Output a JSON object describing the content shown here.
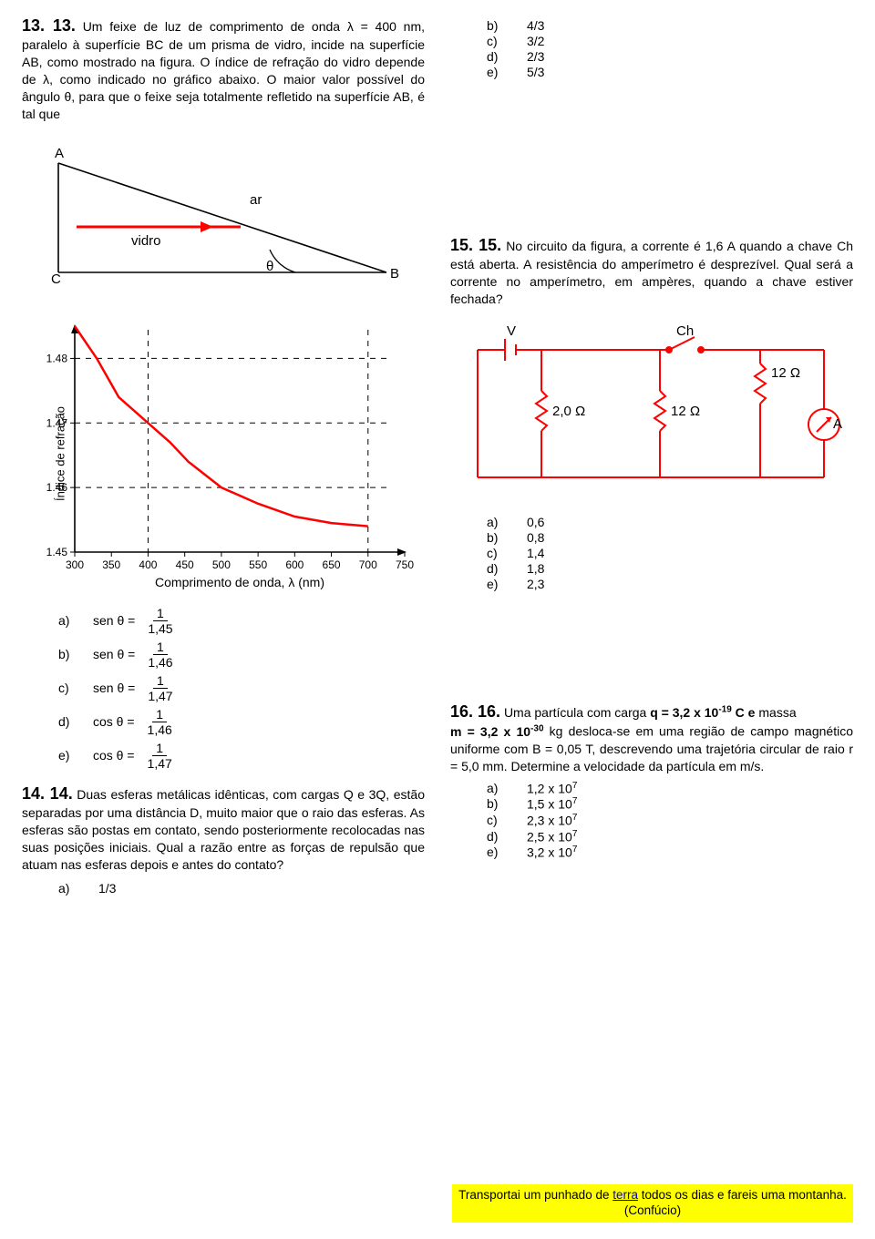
{
  "q13": {
    "number": "13. 13.",
    "body_a": "Um feixe de luz de comprimento de onda λ = 400 nm, paralelo à superfície BC de um prisma de vidro, incide na superfície AB, como mostrado na figura. O índice de refração do vidro depende de λ, como indicado no gráfico abaixo. O maior valor possível do ângulo θ, para que o feixe seja totalmente refletido na superfície AB, é tal que",
    "prism": {
      "labels": {
        "A": "A",
        "B": "B",
        "C": "C",
        "ar": "ar",
        "vidro": "vidro",
        "theta": "θ"
      },
      "colors": {
        "stroke": "#000000",
        "ray": "#ff0000"
      }
    },
    "chart": {
      "type": "line",
      "x_ticks": [
        300,
        350,
        400,
        450,
        500,
        550,
        600,
        650,
        700,
        750
      ],
      "y_ticks": [
        1.45,
        1.46,
        1.47,
        1.48
      ],
      "curve_points": [
        [
          300,
          1.485
        ],
        [
          330,
          1.48
        ],
        [
          360,
          1.474
        ],
        [
          400,
          1.47
        ],
        [
          430,
          1.467
        ],
        [
          455,
          1.464
        ],
        [
          500,
          1.46
        ],
        [
          550,
          1.4575
        ],
        [
          600,
          1.4555
        ],
        [
          650,
          1.4545
        ],
        [
          700,
          1.454
        ]
      ],
      "dash_x": [
        400,
        700
      ],
      "dash_y": [
        1.46,
        1.47,
        1.48
      ],
      "xlim": [
        300,
        750
      ],
      "ylim": [
        1.45,
        1.485
      ],
      "xlabel": "Comprimento de onda, λ (nm)",
      "ylabel": "Índice de refração",
      "colors": {
        "axis": "#000000",
        "curve": "#ff0000",
        "dash": "#000000",
        "bg": "#ffffff"
      },
      "line_width": 2.5,
      "tick_fontsize": 12,
      "label_fontsize": 14
    },
    "options": {
      "a_lhs": "sen θ =",
      "a_num": "1",
      "a_den": "1,45",
      "b_lhs": "sen θ =",
      "b_num": "1",
      "b_den": "1,46",
      "c_lhs": "sen θ =",
      "c_num": "1",
      "c_den": "1,47",
      "d_lhs": "cos θ =",
      "d_num": "1",
      "d_den": "1,46",
      "e_lhs": "cos θ =",
      "e_num": "1",
      "e_den": "1,47"
    }
  },
  "q14": {
    "number": "14. 14.",
    "body": "Duas esferas metálicas idênticas, com cargas Q e 3Q, estão separadas por uma distância D, muito maior que o raio das esferas. As esferas são postas em contato, sendo posteriormente recolocadas nas suas posições iniciais. Qual a razão entre as forças de repulsão que atuam nas esferas depois e antes do contato?",
    "options": {
      "a": "1/3",
      "b": "4/3",
      "c": "3/2",
      "d": "2/3",
      "e": "5/3"
    }
  },
  "q15": {
    "number": "15. 15.",
    "body": "No circuito da figura, a corrente é 1,6 A quando a chave Ch está aberta. A resistência do amperímetro é desprezível. Qual será a corrente no amperímetro, em ampères, quando a chave estiver fechada?",
    "circuit": {
      "labels": {
        "V": "V",
        "Ch": "Ch",
        "R1": "12 Ω",
        "R2": "2,0 Ω",
        "R3": "12 Ω",
        "A": "A"
      },
      "colors": {
        "wire": "#ff0000",
        "text": "#000000"
      },
      "line_width": 2
    },
    "options": {
      "a": "0,6",
      "b": "0,8",
      "c": "1,4",
      "d": "1,8",
      "e": "2,3"
    }
  },
  "q16": {
    "number": "16. 16.",
    "body_pre": "Uma partícula com carga ",
    "q_expr": "q = 3,2 x 10",
    "q_exp": "-19",
    "q_unit": " C e",
    "mass_lbl": "massa",
    "mass_expr": "m = 3,2 x 10",
    "mass_exp": "-30",
    "mass_rest": " kg desloca-se em uma região de campo magnético uniforme com B = 0,05 T, descrevendo uma trajetória circular de raio r = 5,0 mm. Determine a velocidade da partícula em m/s.",
    "options": {
      "a": "1,2 x 10",
      "a_exp": "7",
      "b": "1,5 x 10",
      "b_exp": "7",
      "c": "2,3 x 10",
      "c_exp": "7",
      "d": "2,5 x 10",
      "d_exp": "7",
      "e": "3,2 x 10",
      "e_exp": "7"
    }
  },
  "footer": {
    "text_a": "Transportai um punhado de ",
    "text_link": "terra",
    "text_b": " todos os dias e fareis uma montanha. (Confúcio)"
  },
  "labels": {
    "a": "a)",
    "b": "b)",
    "c": "c)",
    "d": "d)",
    "e": "e)"
  }
}
